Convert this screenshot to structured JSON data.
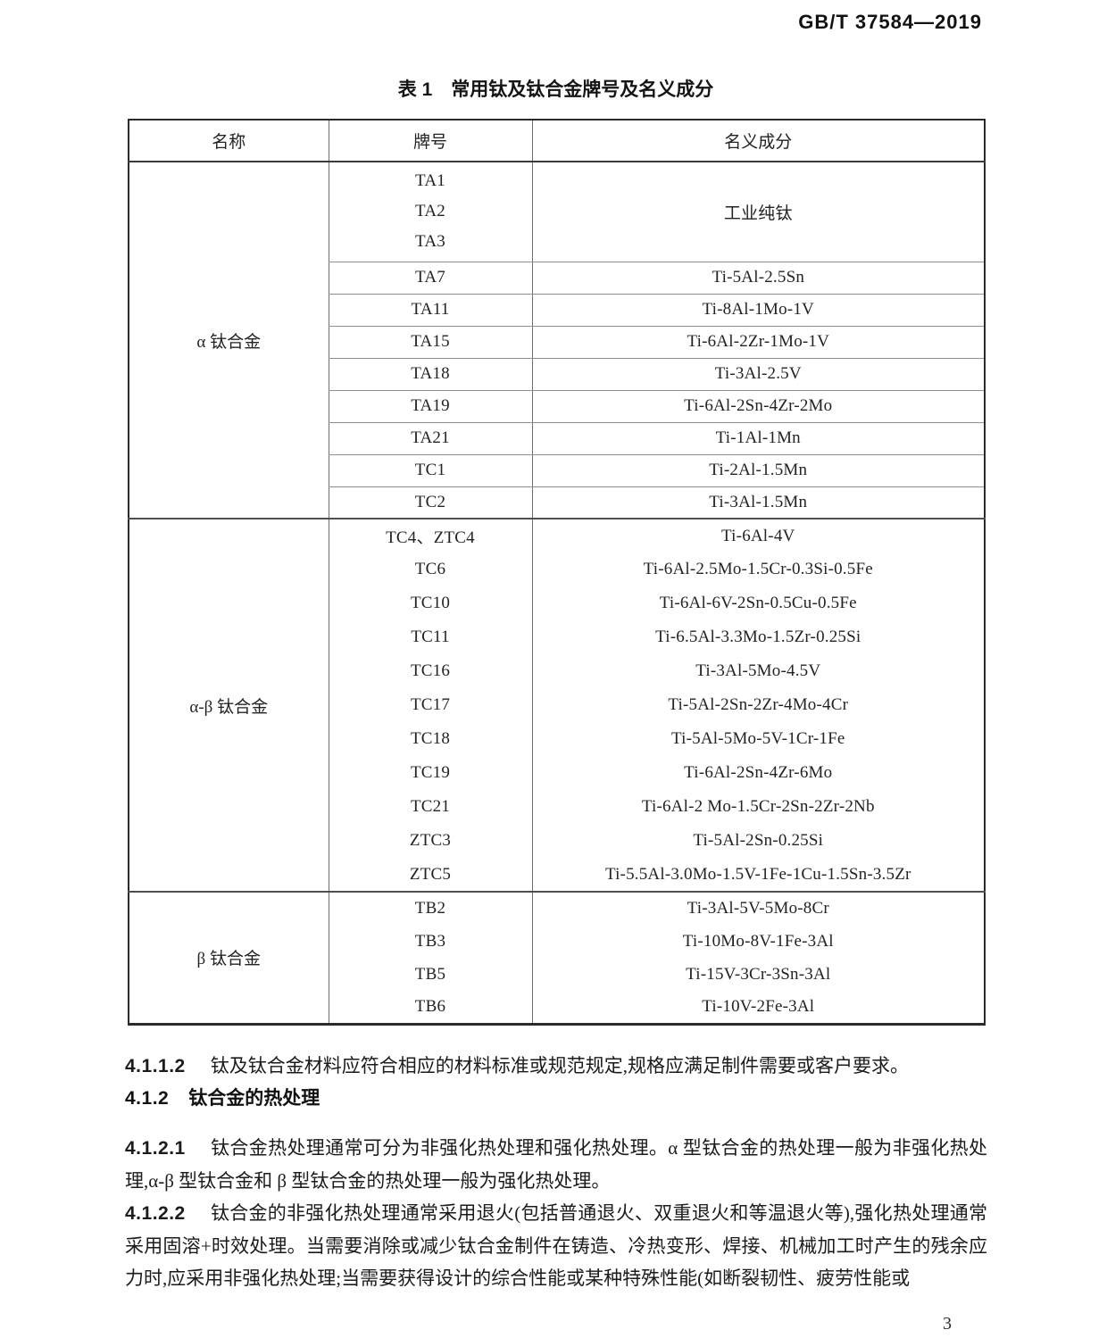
{
  "page": {
    "header_code": "GB/T 37584—2019",
    "page_number": "3"
  },
  "table": {
    "title": "表 1　常用钛及钛合金牌号及名义成分",
    "columns": [
      "名称",
      "牌号",
      "名义成分"
    ],
    "groups": [
      {
        "name": "α 钛合金",
        "stacked_row": {
          "grades": [
            "TA1",
            "TA2",
            "TA3"
          ],
          "composition": "工业纯钛"
        },
        "rows": [
          {
            "grade": "TA7",
            "composition": "Ti-5Al-2.5Sn"
          },
          {
            "grade": "TA11",
            "composition": "Ti-8Al-1Mo-1V"
          },
          {
            "grade": "TA15",
            "composition": "Ti-6Al-2Zr-1Mo-1V"
          },
          {
            "grade": "TA18",
            "composition": "Ti-3Al-2.5V"
          },
          {
            "grade": "TA19",
            "composition": "Ti-6Al-2Sn-4Zr-2Mo"
          },
          {
            "grade": "TA21",
            "composition": "Ti-1Al-1Mn"
          },
          {
            "grade": "TC1",
            "composition": "Ti-2Al-1.5Mn"
          },
          {
            "grade": "TC2",
            "composition": "Ti-3Al-1.5Mn"
          }
        ]
      },
      {
        "name": "α-β 钛合金",
        "rows": [
          {
            "grade": "TC4、ZTC4",
            "composition": "Ti-6Al-4V"
          },
          {
            "grade": "TC6",
            "composition": "Ti-6Al-2.5Mo-1.5Cr-0.3Si-0.5Fe"
          },
          {
            "grade": "TC10",
            "composition": "Ti-6Al-6V-2Sn-0.5Cu-0.5Fe"
          },
          {
            "grade": "TC11",
            "composition": "Ti-6.5Al-3.3Mo-1.5Zr-0.25Si"
          },
          {
            "grade": "TC16",
            "composition": "Ti-3Al-5Mo-4.5V"
          },
          {
            "grade": "TC17",
            "composition": "Ti-5Al-2Sn-2Zr-4Mo-4Cr"
          },
          {
            "grade": "TC18",
            "composition": "Ti-5Al-5Mo-5V-1Cr-1Fe"
          },
          {
            "grade": "TC19",
            "composition": "Ti-6Al-2Sn-4Zr-6Mo"
          },
          {
            "grade": "TC21",
            "composition": "Ti-6Al-2 Mo-1.5Cr-2Sn-2Zr-2Nb"
          },
          {
            "grade": "ZTC3",
            "composition": "Ti-5Al-2Sn-0.25Si"
          },
          {
            "grade": "ZTC5",
            "composition": "Ti-5.5Al-3.0Mo-1.5V-1Fe-1Cu-1.5Sn-3.5Zr"
          }
        ]
      },
      {
        "name": "β 钛合金",
        "rows": [
          {
            "grade": "TB2",
            "composition": "Ti-3Al-5V-5Mo-8Cr"
          },
          {
            "grade": "TB3",
            "composition": "Ti-10Mo-8V-1Fe-3Al"
          },
          {
            "grade": "TB5",
            "composition": "Ti-15V-3Cr-3Sn-3Al"
          },
          {
            "grade": "TB6",
            "composition": "Ti-10V-2Fe-3Al"
          }
        ]
      }
    ]
  },
  "body": {
    "p1": {
      "num": "4.1.1.2",
      "text": "钛及钛合金材料应符合相应的材料标准或规范规定,规格应满足制件需要或客户要求。"
    },
    "h412": {
      "num": "4.1.2",
      "text": "钛合金的热处理"
    },
    "p2": {
      "num": "4.1.2.1",
      "text": "钛合金热处理通常可分为非强化热处理和强化热处理。α 型钛合金的热处理一般为非强化热处理,α-β 型钛合金和 β 型钛合金的热处理一般为强化热处理。"
    },
    "p3": {
      "num": "4.1.2.2",
      "text": "钛合金的非强化热处理通常采用退火(包括普通退火、双重退火和等温退火等),强化热处理通常采用固溶+时效处理。当需要消除或减少钛合金制件在铸造、冷热变形、焊接、机械加工时产生的残余应力时,应采用非强化热处理;当需要获得设计的综合性能或某种特殊性能(如断裂韧性、疲劳性能或"
    }
  }
}
